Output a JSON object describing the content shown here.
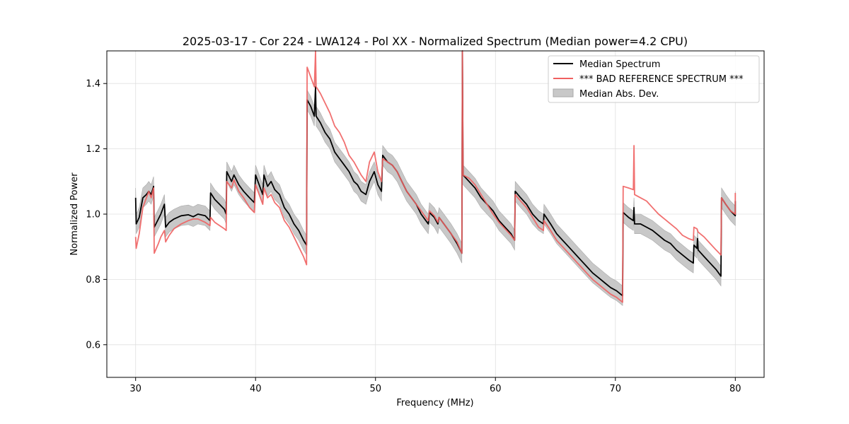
{
  "chart_data": {
    "type": "line",
    "title": "2025-03-17 - Cor 224 - LWA124 - Pol XX - Normalized Spectrum (Median power=4.2 CPU)",
    "xlabel": "Frequency (MHz)",
    "ylabel": "Normalized Power",
    "xlim": [
      27.6,
      82.4
    ],
    "ylim": [
      0.5,
      1.5
    ],
    "xticks": [
      30,
      40,
      50,
      60,
      70,
      80
    ],
    "yticks": [
      0.6,
      0.8,
      1.0,
      1.2,
      1.4
    ],
    "xtick_labels": [
      "30",
      "40",
      "50",
      "60",
      "70",
      "80"
    ],
    "ytick_labels": [
      "0.6",
      "0.8",
      "1.0",
      "1.2",
      "1.4"
    ],
    "grid": true,
    "legend_position": "top-right",
    "legend": [
      {
        "label": "Median Spectrum",
        "kind": "line",
        "color": "#000000"
      },
      {
        "label": "*** BAD REFERENCE SPECTRUM ***",
        "kind": "line",
        "color": "#f06060"
      },
      {
        "label": "Median Abs. Dev.",
        "kind": "band",
        "color": "#c8c8c8"
      }
    ],
    "series": [
      {
        "name": "Median Spectrum",
        "color": "#000000",
        "points": [
          [
            30.0,
            1.05
          ],
          [
            30.05,
            0.97
          ],
          [
            30.3,
            0.99
          ],
          [
            30.6,
            1.05
          ],
          [
            30.9,
            1.06
          ],
          [
            31.1,
            1.07
          ],
          [
            31.3,
            1.06
          ],
          [
            31.5,
            1.085
          ],
          [
            31.55,
            0.96
          ],
          [
            31.9,
            0.985
          ],
          [
            32.1,
            1.0
          ],
          [
            32.4,
            1.03
          ],
          [
            32.5,
            0.96
          ],
          [
            32.8,
            0.975
          ],
          [
            33.2,
            0.985
          ],
          [
            33.8,
            0.995
          ],
          [
            34.4,
            0.998
          ],
          [
            34.8,
            0.992
          ],
          [
            35.2,
            1.0
          ],
          [
            35.8,
            0.995
          ],
          [
            36.2,
            0.98
          ],
          [
            36.25,
            1.065
          ],
          [
            36.6,
            1.045
          ],
          [
            37.0,
            1.03
          ],
          [
            37.4,
            1.015
          ],
          [
            37.55,
            1.0
          ],
          [
            37.6,
            1.13
          ],
          [
            38.0,
            1.1
          ],
          [
            38.2,
            1.12
          ],
          [
            38.6,
            1.09
          ],
          [
            39.0,
            1.07
          ],
          [
            39.5,
            1.05
          ],
          [
            39.9,
            1.035
          ],
          [
            40.0,
            1.12
          ],
          [
            40.3,
            1.09
          ],
          [
            40.6,
            1.06
          ],
          [
            40.7,
            1.12
          ],
          [
            41.0,
            1.085
          ],
          [
            41.3,
            1.1
          ],
          [
            41.6,
            1.075
          ],
          [
            42.0,
            1.06
          ],
          [
            42.4,
            1.02
          ],
          [
            42.8,
            1.0
          ],
          [
            43.2,
            0.97
          ],
          [
            43.6,
            0.95
          ],
          [
            44.0,
            0.92
          ],
          [
            44.25,
            0.905
          ],
          [
            44.3,
            1.35
          ],
          [
            44.6,
            1.33
          ],
          [
            44.9,
            1.3
          ],
          [
            45.0,
            1.39
          ],
          [
            45.05,
            1.3
          ],
          [
            45.4,
            1.28
          ],
          [
            45.8,
            1.25
          ],
          [
            46.2,
            1.23
          ],
          [
            46.6,
            1.19
          ],
          [
            47.0,
            1.17
          ],
          [
            47.4,
            1.15
          ],
          [
            47.8,
            1.13
          ],
          [
            48.2,
            1.1
          ],
          [
            48.5,
            1.09
          ],
          [
            48.8,
            1.07
          ],
          [
            49.2,
            1.06
          ],
          [
            49.5,
            1.1
          ],
          [
            49.9,
            1.13
          ],
          [
            50.2,
            1.09
          ],
          [
            50.5,
            1.07
          ],
          [
            50.6,
            1.18
          ],
          [
            51.0,
            1.16
          ],
          [
            51.4,
            1.15
          ],
          [
            51.8,
            1.13
          ],
          [
            52.2,
            1.1
          ],
          [
            52.6,
            1.07
          ],
          [
            53.0,
            1.05
          ],
          [
            53.4,
            1.03
          ],
          [
            53.8,
            1.0
          ],
          [
            54.2,
            0.98
          ],
          [
            54.4,
            0.97
          ],
          [
            54.5,
            1.005
          ],
          [
            54.9,
            0.99
          ],
          [
            55.2,
            0.97
          ],
          [
            55.3,
            0.99
          ],
          [
            55.8,
            0.965
          ],
          [
            56.3,
            0.94
          ],
          [
            56.8,
            0.91
          ],
          [
            57.2,
            0.88
          ],
          [
            57.25,
            1.5
          ],
          [
            57.3,
            1.12
          ],
          [
            57.8,
            1.1
          ],
          [
            58.3,
            1.08
          ],
          [
            58.8,
            1.05
          ],
          [
            59.3,
            1.03
          ],
          [
            59.8,
            1.01
          ],
          [
            60.3,
            0.98
          ],
          [
            60.8,
            0.96
          ],
          [
            61.3,
            0.94
          ],
          [
            61.6,
            0.92
          ],
          [
            61.65,
            1.07
          ],
          [
            62.1,
            1.05
          ],
          [
            62.6,
            1.03
          ],
          [
            63.1,
            1.0
          ],
          [
            63.6,
            0.98
          ],
          [
            64.0,
            0.97
          ],
          [
            64.05,
            1.0
          ],
          [
            64.6,
            0.97
          ],
          [
            65.1,
            0.94
          ],
          [
            65.6,
            0.92
          ],
          [
            66.1,
            0.9
          ],
          [
            66.6,
            0.88
          ],
          [
            67.1,
            0.86
          ],
          [
            67.6,
            0.84
          ],
          [
            68.1,
            0.82
          ],
          [
            68.6,
            0.805
          ],
          [
            69.1,
            0.79
          ],
          [
            69.6,
            0.775
          ],
          [
            70.1,
            0.765
          ],
          [
            70.6,
            0.75
          ],
          [
            70.65,
            1.005
          ],
          [
            71.1,
            0.99
          ],
          [
            71.5,
            0.98
          ],
          [
            71.55,
            1.02
          ],
          [
            71.6,
            0.97
          ],
          [
            72.1,
            0.97
          ],
          [
            72.6,
            0.96
          ],
          [
            73.1,
            0.95
          ],
          [
            73.6,
            0.935
          ],
          [
            74.1,
            0.92
          ],
          [
            74.6,
            0.91
          ],
          [
            75.1,
            0.89
          ],
          [
            75.6,
            0.875
          ],
          [
            76.1,
            0.86
          ],
          [
            76.5,
            0.85
          ],
          [
            76.55,
            0.905
          ],
          [
            76.8,
            0.895
          ],
          [
            76.85,
            0.925
          ],
          [
            76.9,
            0.89
          ],
          [
            77.4,
            0.87
          ],
          [
            77.9,
            0.85
          ],
          [
            78.4,
            0.83
          ],
          [
            78.8,
            0.81
          ],
          [
            78.85,
            1.05
          ],
          [
            79.2,
            1.03
          ],
          [
            79.6,
            1.01
          ],
          [
            80.0,
            0.995
          ],
          [
            80.0,
            1.04
          ]
        ]
      },
      {
        "name": "*** BAD REFERENCE SPECTRUM ***",
        "color": "#f06060",
        "points": [
          [
            30.0,
            0.93
          ],
          [
            30.05,
            0.895
          ],
          [
            30.3,
            0.94
          ],
          [
            30.6,
            1.02
          ],
          [
            30.9,
            1.05
          ],
          [
            31.1,
            1.07
          ],
          [
            31.3,
            1.05
          ],
          [
            31.5,
            1.08
          ],
          [
            31.55,
            0.88
          ],
          [
            31.9,
            0.91
          ],
          [
            32.1,
            0.93
          ],
          [
            32.4,
            0.95
          ],
          [
            32.5,
            0.915
          ],
          [
            32.8,
            0.935
          ],
          [
            33.2,
            0.955
          ],
          [
            33.8,
            0.97
          ],
          [
            34.4,
            0.98
          ],
          [
            34.8,
            0.985
          ],
          [
            35.2,
            0.985
          ],
          [
            35.8,
            0.975
          ],
          [
            36.2,
            0.965
          ],
          [
            36.25,
            0.99
          ],
          [
            36.6,
            0.975
          ],
          [
            37.0,
            0.965
          ],
          [
            37.4,
            0.955
          ],
          [
            37.55,
            0.95
          ],
          [
            37.6,
            1.1
          ],
          [
            38.0,
            1.08
          ],
          [
            38.2,
            1.105
          ],
          [
            38.6,
            1.07
          ],
          [
            39.0,
            1.05
          ],
          [
            39.5,
            1.02
          ],
          [
            39.9,
            1.005
          ],
          [
            40.0,
            1.09
          ],
          [
            40.3,
            1.06
          ],
          [
            40.6,
            1.03
          ],
          [
            40.7,
            1.08
          ],
          [
            41.0,
            1.05
          ],
          [
            41.3,
            1.06
          ],
          [
            41.6,
            1.035
          ],
          [
            42.0,
            1.02
          ],
          [
            42.4,
            0.98
          ],
          [
            42.8,
            0.96
          ],
          [
            43.2,
            0.93
          ],
          [
            43.6,
            0.9
          ],
          [
            44.0,
            0.87
          ],
          [
            44.25,
            0.845
          ],
          [
            44.3,
            1.45
          ],
          [
            44.6,
            1.42
          ],
          [
            44.9,
            1.39
          ],
          [
            45.0,
            1.5
          ],
          [
            45.05,
            1.39
          ],
          [
            45.4,
            1.37
          ],
          [
            45.8,
            1.34
          ],
          [
            46.2,
            1.31
          ],
          [
            46.6,
            1.27
          ],
          [
            47.0,
            1.25
          ],
          [
            47.4,
            1.22
          ],
          [
            47.8,
            1.18
          ],
          [
            48.2,
            1.16
          ],
          [
            48.5,
            1.14
          ],
          [
            48.8,
            1.12
          ],
          [
            49.2,
            1.1
          ],
          [
            49.5,
            1.16
          ],
          [
            49.9,
            1.19
          ],
          [
            50.2,
            1.13
          ],
          [
            50.5,
            1.1
          ],
          [
            50.6,
            1.17
          ],
          [
            51.0,
            1.16
          ],
          [
            51.4,
            1.15
          ],
          [
            51.8,
            1.13
          ],
          [
            52.2,
            1.1
          ],
          [
            52.6,
            1.07
          ],
          [
            53.0,
            1.05
          ],
          [
            53.4,
            1.03
          ],
          [
            53.8,
            1.01
          ],
          [
            54.2,
            0.99
          ],
          [
            54.4,
            0.98
          ],
          [
            54.5,
            1.01
          ],
          [
            54.9,
            0.995
          ],
          [
            55.2,
            0.975
          ],
          [
            55.3,
            0.99
          ],
          [
            55.8,
            0.965
          ],
          [
            56.3,
            0.94
          ],
          [
            56.8,
            0.915
          ],
          [
            57.2,
            0.88
          ],
          [
            57.25,
            1.5
          ],
          [
            57.3,
            1.12
          ],
          [
            57.8,
            1.11
          ],
          [
            58.3,
            1.09
          ],
          [
            58.8,
            1.06
          ],
          [
            59.3,
            1.03
          ],
          [
            59.8,
            1.0
          ],
          [
            60.3,
            0.975
          ],
          [
            60.8,
            0.955
          ],
          [
            61.3,
            0.935
          ],
          [
            61.6,
            0.92
          ],
          [
            61.65,
            1.06
          ],
          [
            62.1,
            1.04
          ],
          [
            62.6,
            1.02
          ],
          [
            63.1,
            0.99
          ],
          [
            63.6,
            0.96
          ],
          [
            64.0,
            0.95
          ],
          [
            64.05,
            0.98
          ],
          [
            64.6,
            0.95
          ],
          [
            65.1,
            0.92
          ],
          [
            65.6,
            0.9
          ],
          [
            66.1,
            0.88
          ],
          [
            66.6,
            0.86
          ],
          [
            67.1,
            0.84
          ],
          [
            67.6,
            0.82
          ],
          [
            68.1,
            0.8
          ],
          [
            68.6,
            0.785
          ],
          [
            69.1,
            0.77
          ],
          [
            69.6,
            0.755
          ],
          [
            70.1,
            0.745
          ],
          [
            70.6,
            0.73
          ],
          [
            70.65,
            1.085
          ],
          [
            71.1,
            1.08
          ],
          [
            71.5,
            1.075
          ],
          [
            71.55,
            1.21
          ],
          [
            71.6,
            1.06
          ],
          [
            72.1,
            1.05
          ],
          [
            72.6,
            1.04
          ],
          [
            73.1,
            1.02
          ],
          [
            73.6,
            1.0
          ],
          [
            74.1,
            0.985
          ],
          [
            74.6,
            0.97
          ],
          [
            75.1,
            0.955
          ],
          [
            75.6,
            0.935
          ],
          [
            76.1,
            0.925
          ],
          [
            76.5,
            0.92
          ],
          [
            76.55,
            0.96
          ],
          [
            76.8,
            0.955
          ],
          [
            76.85,
            0.95
          ],
          [
            76.9,
            0.945
          ],
          [
            77.4,
            0.93
          ],
          [
            77.9,
            0.91
          ],
          [
            78.4,
            0.89
          ],
          [
            78.8,
            0.875
          ],
          [
            78.85,
            1.05
          ],
          [
            79.2,
            1.03
          ],
          [
            79.6,
            1.01
          ],
          [
            80.0,
            1.0
          ],
          [
            80.0,
            1.065
          ]
        ]
      }
    ],
    "band": {
      "name": "Median Abs. Dev.",
      "color": "#c8c8c8",
      "around": "Median Spectrum",
      "halfwidth": 0.03
    }
  }
}
